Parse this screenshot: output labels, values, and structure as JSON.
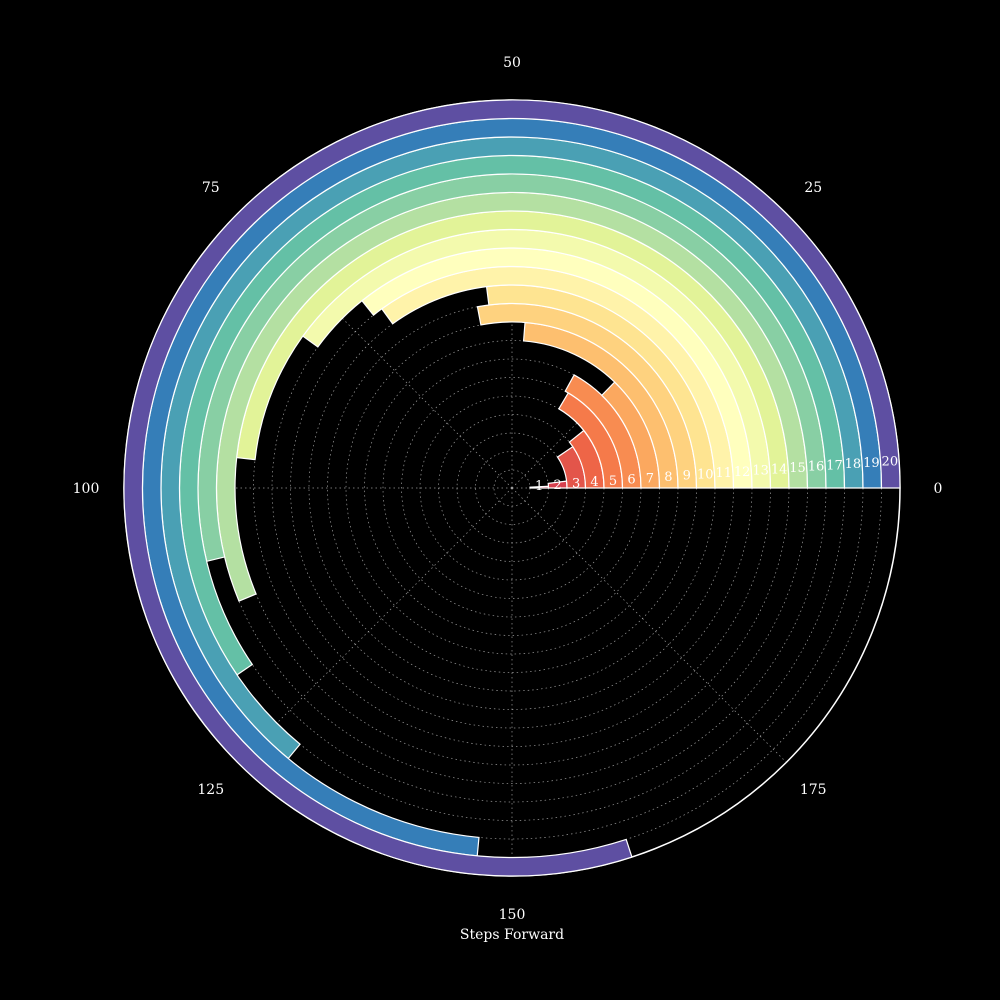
{
  "chart_data": {
    "type": "polar-bar",
    "title": "",
    "xlabel": "Steps Forward",
    "theta_range": [
      0,
      200
    ],
    "theta_ticks": [
      "0",
      "25",
      "50",
      "75",
      "100",
      "125",
      "150",
      "175"
    ],
    "theta_tick_values": [
      0,
      25,
      50,
      75,
      100,
      125,
      150,
      175
    ],
    "theta_direction": "counterclockwise",
    "theta_zero": "east",
    "grid": true,
    "background": "#000000",
    "colormap": "Spectral",
    "rings": [
      {
        "label": "1",
        "max_steps": 1.5,
        "color": "#c9304f"
      },
      {
        "label": "2",
        "max_steps": 4,
        "color": "#d6404e"
      },
      {
        "label": "3",
        "max_steps": 19,
        "color": "#e3554a"
      },
      {
        "label": "4",
        "max_steps": 21.5,
        "color": "#ee6547"
      },
      {
        "label": "5",
        "max_steps": 33,
        "color": "#f57a4a"
      },
      {
        "label": "6",
        "max_steps": 34,
        "color": "#f88c51"
      },
      {
        "label": "7",
        "max_steps": 25.5,
        "color": "#fba85f"
      },
      {
        "label": "8",
        "max_steps": 47.5,
        "color": "#fdbf6f"
      },
      {
        "label": "9",
        "max_steps": 56,
        "color": "#fed27f"
      },
      {
        "label": "10",
        "max_steps": 54,
        "color": "#fee491"
      },
      {
        "label": "11",
        "max_steps": 70,
        "color": "#fff3aa"
      },
      {
        "label": "12",
        "max_steps": 71.5,
        "color": "#ffffbe"
      },
      {
        "label": "13",
        "max_steps": 80,
        "color": "#f3faad"
      },
      {
        "label": "14",
        "max_steps": 96.5,
        "color": "#e2f398"
      },
      {
        "label": "15",
        "max_steps": 112.5,
        "color": "#b4e0a2"
      },
      {
        "label": "16",
        "max_steps": 107.5,
        "color": "#88cfa4"
      },
      {
        "label": "17",
        "max_steps": 119,
        "color": "#64c0a6"
      },
      {
        "label": "18",
        "max_steps": 128,
        "color": "#4aa0b4"
      },
      {
        "label": "19",
        "max_steps": 147,
        "color": "#357eb8"
      },
      {
        "label": "20",
        "max_steps": 160,
        "color": "#5e4fa2"
      }
    ]
  }
}
